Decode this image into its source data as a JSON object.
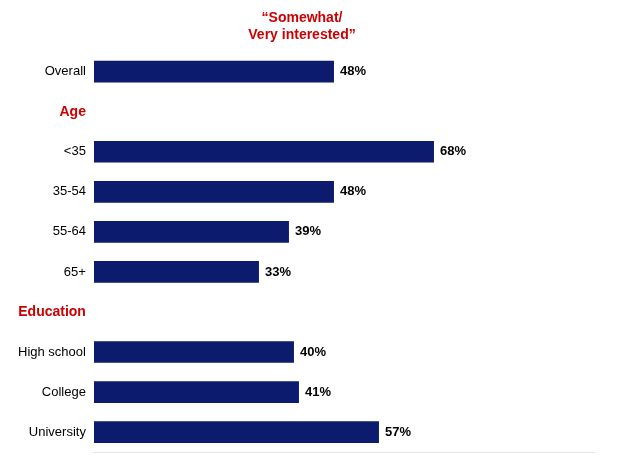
{
  "chart_data": {
    "type": "bar",
    "orientation": "horizontal",
    "categories": [
      "Overall",
      "Age",
      "<35",
      "35-54",
      "55-64",
      "65+",
      "Education",
      "High school",
      "College",
      "University"
    ],
    "values": [
      48,
      null,
      68,
      48,
      39,
      33,
      null,
      40,
      41,
      57
    ],
    "value_labels": [
      "48%",
      null,
      "68%",
      "48%",
      "39%",
      "33%",
      null,
      "40%",
      "41%",
      "57%"
    ],
    "data_labels": true,
    "color": "#0d1b6e",
    "xlim": [
      0,
      100
    ],
    "grid": false,
    "tick_labels": "y",
    "annotations": [
      {
        "text": "“Somewhat/\nVery interested”",
        "color": "#cc0000"
      }
    ]
  }
}
